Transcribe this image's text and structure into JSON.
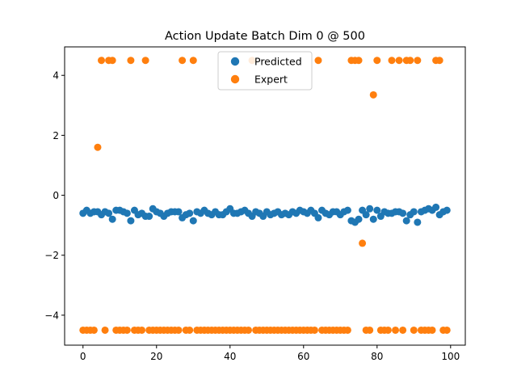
{
  "chart_data": {
    "type": "scatter",
    "title": "Action Update Batch Dim 0 @ 500",
    "xlabel": "",
    "ylabel": "",
    "xlim": [
      -5,
      104
    ],
    "ylim": [
      -5.0,
      4.95
    ],
    "xticks": [
      0,
      20,
      40,
      60,
      80,
      100
    ],
    "yticks": [
      -4,
      -2,
      0,
      2,
      4
    ],
    "grid": false,
    "legend_position": "top-center",
    "series": [
      {
        "name": "Predicted",
        "color": "#1f77b4",
        "x": [
          0,
          1,
          2,
          3,
          4,
          5,
          6,
          7,
          8,
          9,
          10,
          11,
          12,
          13,
          14,
          15,
          16,
          17,
          18,
          19,
          20,
          21,
          22,
          23,
          24,
          25,
          26,
          27,
          28,
          29,
          30,
          31,
          32,
          33,
          34,
          35,
          36,
          37,
          38,
          39,
          40,
          41,
          42,
          43,
          44,
          45,
          46,
          47,
          48,
          49,
          50,
          51,
          52,
          53,
          54,
          55,
          56,
          57,
          58,
          59,
          60,
          61,
          62,
          63,
          64,
          65,
          66,
          67,
          68,
          69,
          70,
          71,
          72,
          73,
          74,
          75,
          76,
          77,
          78,
          79,
          80,
          81,
          82,
          83,
          84,
          85,
          86,
          87,
          88,
          89,
          90,
          91,
          92,
          93,
          94,
          95,
          96,
          97,
          98,
          99
        ],
        "y": [
          -0.6,
          -0.5,
          -0.6,
          -0.55,
          -0.55,
          -0.65,
          -0.55,
          -0.6,
          -0.8,
          -0.5,
          -0.5,
          -0.55,
          -0.6,
          -0.85,
          -0.5,
          -0.65,
          -0.6,
          -0.7,
          -0.7,
          -0.45,
          -0.55,
          -0.6,
          -0.7,
          -0.6,
          -0.55,
          -0.55,
          -0.55,
          -0.75,
          -0.65,
          -0.6,
          -0.85,
          -0.55,
          -0.6,
          -0.5,
          -0.6,
          -0.65,
          -0.55,
          -0.65,
          -0.65,
          -0.55,
          -0.45,
          -0.6,
          -0.6,
          -0.55,
          -0.5,
          -0.6,
          -0.7,
          -0.55,
          -0.6,
          -0.7,
          -0.55,
          -0.65,
          -0.6,
          -0.55,
          -0.65,
          -0.6,
          -0.65,
          -0.55,
          -0.6,
          -0.5,
          -0.55,
          -0.6,
          -0.5,
          -0.6,
          -0.75,
          -0.5,
          -0.6,
          -0.65,
          -0.55,
          -0.55,
          -0.65,
          -0.55,
          -0.5,
          -0.85,
          -0.9,
          -0.8,
          -0.5,
          -0.65,
          -0.45,
          -0.8,
          -0.5,
          -0.7,
          -0.55,
          -0.6,
          -0.6,
          -0.55,
          -0.55,
          -0.6,
          -0.85,
          -0.65,
          -0.55,
          -0.9,
          -0.55,
          -0.5,
          -0.45,
          -0.5,
          -0.4,
          -0.65,
          -0.55,
          -0.5
        ]
      },
      {
        "name": "Expert",
        "color": "#ff7f0e",
        "x": [
          0,
          1,
          2,
          3,
          4,
          5,
          6,
          7,
          8,
          9,
          10,
          11,
          12,
          13,
          14,
          15,
          16,
          17,
          18,
          19,
          20,
          21,
          22,
          23,
          24,
          25,
          26,
          27,
          28,
          29,
          30,
          31,
          32,
          33,
          34,
          35,
          36,
          37,
          38,
          39,
          40,
          41,
          42,
          43,
          44,
          45,
          46,
          47,
          48,
          49,
          50,
          51,
          52,
          53,
          54,
          55,
          56,
          57,
          58,
          59,
          60,
          61,
          62,
          63,
          64,
          65,
          66,
          67,
          68,
          69,
          70,
          71,
          72,
          73,
          74,
          75,
          76,
          77,
          78,
          79,
          80,
          81,
          82,
          83,
          84,
          85,
          86,
          87,
          88,
          89,
          90,
          91,
          92,
          93,
          94,
          95,
          96,
          97,
          98,
          99
        ],
        "y": [
          -4.5,
          -4.5,
          -4.5,
          -4.5,
          1.6,
          4.5,
          -4.5,
          4.5,
          4.5,
          -4.5,
          -4.5,
          -4.5,
          -4.5,
          4.5,
          -4.5,
          -4.5,
          -4.5,
          4.5,
          -4.5,
          -4.5,
          -4.5,
          -4.5,
          -4.5,
          -4.5,
          -4.5,
          -4.5,
          -4.5,
          4.5,
          -4.5,
          -4.5,
          4.5,
          -4.5,
          -4.5,
          -4.5,
          -4.5,
          -4.5,
          -4.5,
          -4.5,
          -4.5,
          -4.5,
          -4.5,
          -4.5,
          -4.5,
          -4.5,
          -4.5,
          -4.5,
          4.5,
          -4.5,
          -4.5,
          -4.5,
          -4.5,
          -4.5,
          -4.5,
          -4.5,
          -4.5,
          -4.5,
          -4.5,
          -4.5,
          -4.5,
          -4.5,
          -4.5,
          -4.5,
          -4.5,
          -4.5,
          4.5,
          -4.5,
          -4.5,
          -4.5,
          -4.5,
          -4.5,
          -4.5,
          -4.5,
          -4.5,
          4.5,
          4.5,
          4.5,
          -1.6,
          -4.5,
          -4.5,
          3.35,
          4.5,
          -4.5,
          -4.5,
          -4.5,
          4.5,
          -4.5,
          4.5,
          -4.5,
          4.5,
          4.5,
          -4.5,
          4.5,
          -4.5,
          -4.5,
          -4.5,
          -4.5,
          4.5,
          4.5,
          -4.5,
          -4.5
        ]
      }
    ]
  }
}
